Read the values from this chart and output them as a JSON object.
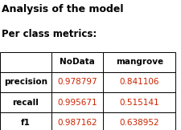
{
  "title": "Analysis of the model",
  "subtitle": "Per class metrics:",
  "col_headers": [
    "",
    "NoData",
    "mangrove"
  ],
  "row_headers": [
    "precision",
    "recall",
    "f1"
  ],
  "values": [
    [
      "0.978797",
      "0.841106"
    ],
    [
      "0.995671",
      "0.515141"
    ],
    [
      "0.987162",
      "0.638952"
    ]
  ],
  "title_fontsize": 9,
  "subtitle_fontsize": 8.5,
  "table_fontsize": 7.5,
  "bg_color": "#ffffff",
  "header_color": "#000000",
  "value_color": "#cc2200",
  "row_header_color": "#000000",
  "border_color": "#000000"
}
